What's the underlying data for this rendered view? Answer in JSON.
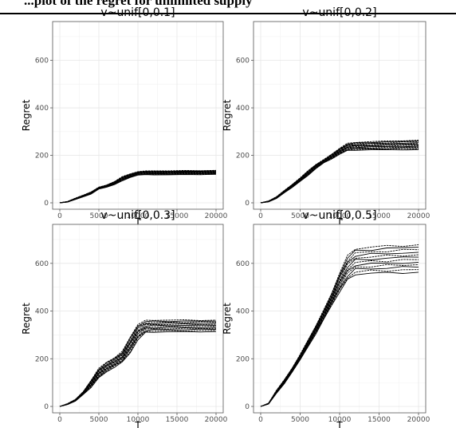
{
  "page": {
    "header_caption": "...plot of the regret for unlimited supply"
  },
  "chart_data": [
    {
      "type": "line",
      "title": "v~unif[0,0.1]",
      "xlabel": "T",
      "ylabel": "Regret",
      "xlim": [
        0,
        20000
      ],
      "ylim": [
        0,
        750
      ],
      "xticks": [
        0,
        5000,
        10000,
        15000,
        20000
      ],
      "yticks": [
        0,
        200,
        400,
        600
      ],
      "grid": true,
      "legend": "none",
      "line_color": "#000000",
      "num_runs": 12,
      "x": [
        0,
        1000,
        2000,
        3000,
        4000,
        5000,
        6000,
        7000,
        8000,
        9000,
        10000,
        11000,
        12000,
        14000,
        16000,
        18000,
        20000
      ],
      "envelope_low": [
        0,
        3,
        14,
        25,
        37,
        58,
        66,
        77,
        92,
        107,
        117,
        118,
        118,
        118,
        119,
        119,
        120
      ],
      "envelope_high": [
        0,
        6,
        20,
        32,
        46,
        66,
        75,
        90,
        110,
        122,
        132,
        134,
        135,
        135,
        136,
        136,
        137
      ]
    },
    {
      "type": "line",
      "title": "v~unif[0,0.2]",
      "xlabel": "T",
      "ylabel": "Regret",
      "xlim": [
        0,
        20000
      ],
      "ylim": [
        0,
        750
      ],
      "xticks": [
        0,
        5000,
        10000,
        15000,
        20000
      ],
      "yticks": [
        0,
        200,
        400,
        600
      ],
      "grid": true,
      "legend": "none",
      "line_color": "#000000",
      "num_runs": 12,
      "x": [
        0,
        1000,
        2000,
        3000,
        4000,
        5000,
        6000,
        7000,
        8000,
        9000,
        10000,
        11000,
        12000,
        14000,
        16000,
        18000,
        20000
      ],
      "envelope_low": [
        0,
        4,
        18,
        42,
        65,
        90,
        115,
        145,
        168,
        185,
        205,
        220,
        222,
        223,
        223,
        224,
        224
      ],
      "envelope_high": [
        0,
        8,
        26,
        52,
        78,
        105,
        135,
        162,
        182,
        205,
        230,
        250,
        255,
        258,
        260,
        262,
        264
      ]
    },
    {
      "type": "line",
      "title": "v~unif[0,0.3]",
      "xlabel": "T",
      "ylabel": "Regret",
      "xlim": [
        0,
        20000
      ],
      "ylim": [
        0,
        750
      ],
      "xticks": [
        0,
        5000,
        10000,
        15000,
        20000
      ],
      "yticks": [
        0,
        200,
        400,
        600
      ],
      "grid": true,
      "legend": "none",
      "line_color": "#000000",
      "num_runs": 12,
      "x": [
        0,
        1000,
        2000,
        3000,
        4000,
        5000,
        6000,
        7000,
        8000,
        9000,
        10000,
        11000,
        12000,
        14000,
        16000,
        18000,
        20000
      ],
      "envelope_low": [
        0,
        8,
        22,
        50,
        80,
        120,
        145,
        165,
        185,
        225,
        280,
        310,
        312,
        313,
        313,
        314,
        314
      ],
      "envelope_high": [
        0,
        12,
        30,
        62,
        110,
        160,
        185,
        205,
        230,
        290,
        345,
        360,
        362,
        362,
        362,
        362,
        362
      ]
    },
    {
      "type": "line",
      "title": "v~unif[0,0.5]",
      "xlabel": "T",
      "ylabel": "Regret",
      "xlim": [
        0,
        20000
      ],
      "ylim": [
        0,
        750
      ],
      "xticks": [
        0,
        5000,
        10000,
        15000,
        20000
      ],
      "yticks": [
        0,
        200,
        400,
        600
      ],
      "grid": true,
      "legend": "none",
      "line_color": "#000000",
      "num_runs": 12,
      "x": [
        0,
        1000,
        2000,
        3000,
        4000,
        5000,
        6000,
        7000,
        8000,
        9000,
        10000,
        11000,
        12000,
        14000,
        16000,
        18000,
        20000
      ],
      "envelope_low": [
        0,
        10,
        55,
        95,
        145,
        195,
        250,
        305,
        365,
        425,
        480,
        530,
        555,
        558,
        560,
        562,
        563
      ],
      "envelope_high": [
        0,
        14,
        68,
        112,
        162,
        218,
        278,
        340,
        405,
        475,
        560,
        630,
        662,
        668,
        672,
        675,
        678
      ]
    }
  ]
}
